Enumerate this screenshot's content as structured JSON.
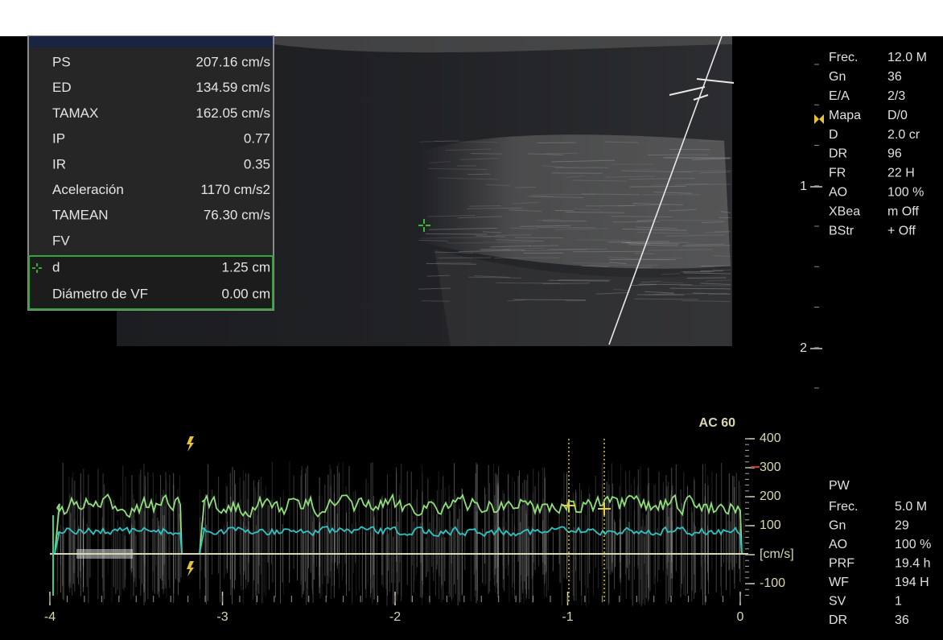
{
  "measurements": [
    {
      "label": "PS",
      "value": "207.16 cm/s"
    },
    {
      "label": "ED",
      "value": "134.59 cm/s"
    },
    {
      "label": "TAMAX",
      "value": "162.05 cm/s"
    },
    {
      "label": "IP",
      "value": "0.77"
    },
    {
      "label": "IR",
      "value": "0.35"
    },
    {
      "label": "Aceleración",
      "value": "1170 cm/s2"
    },
    {
      "label": "TAMEAN",
      "value": "76.30 cm/s"
    },
    {
      "label": "FV"
    }
  ],
  "distance": [
    {
      "label": "d",
      "value": "1.25 cm"
    },
    {
      "label": "Diámetro de VF",
      "value": "0.00 cm"
    }
  ],
  "bmode_params": [
    {
      "label": "Frec.",
      "value": "12.0 M"
    },
    {
      "label": "Gn",
      "value": "36"
    },
    {
      "label": "E/A",
      "value": "2/3"
    },
    {
      "label": "Mapa",
      "value": "D/0"
    },
    {
      "label": "D",
      "value": "2.0 cr"
    },
    {
      "label": "DR",
      "value": "96"
    },
    {
      "label": "FR",
      "value": "22 H"
    },
    {
      "label": "AO",
      "value": "100 %"
    },
    {
      "label": "XBea",
      "value": "m Off"
    },
    {
      "label": "BStr",
      "value": "+ Off"
    }
  ],
  "depth_marks": [
    "1",
    "2"
  ],
  "doppler": {
    "scale_label": "AC 60",
    "y_labels": [
      "400",
      "300",
      "200",
      "100",
      "[cm/s]",
      "-100"
    ],
    "x_labels": [
      "-4",
      "-3",
      "-2",
      "-1",
      "0"
    ]
  },
  "pw_title": "PW",
  "pw_params": [
    {
      "label": "Frec.",
      "value": "5.0 M"
    },
    {
      "label": "Gn",
      "value": "29"
    },
    {
      "label": "AO",
      "value": "100 %"
    },
    {
      "label": "PRF",
      "value": "19.4 h"
    },
    {
      "label": "WF",
      "value": "194 H"
    },
    {
      "label": "SV",
      "value": "1"
    },
    {
      "label": "DR",
      "value": "36"
    }
  ]
}
